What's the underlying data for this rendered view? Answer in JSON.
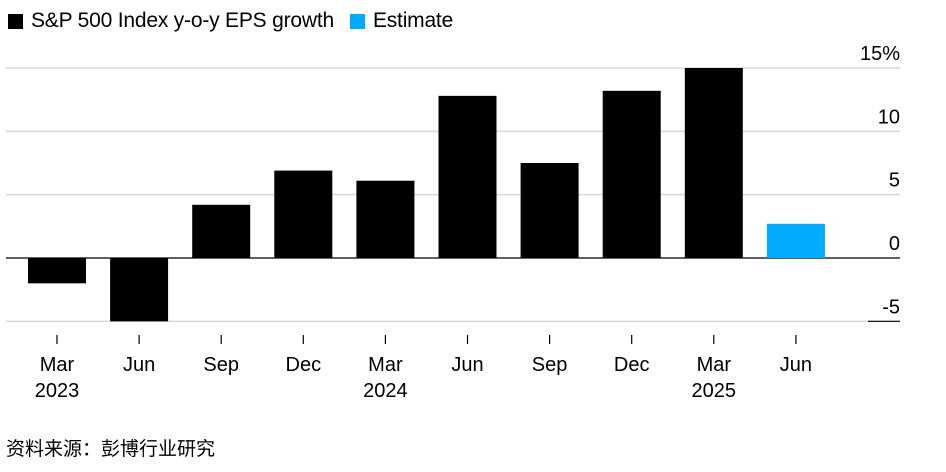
{
  "legend": [
    {
      "label": "S&P 500 Index y-o-y EPS growth",
      "color": "#000000"
    },
    {
      "label": "Estimate",
      "color": "#00aaff"
    }
  ],
  "source": "资料来源：彭博行业研究",
  "chart_data": {
    "type": "bar",
    "categories": [
      "Mar",
      "Jun",
      "Sep",
      "Dec",
      "Mar",
      "Jun",
      "Sep",
      "Dec",
      "Mar",
      "Jun"
    ],
    "year_labels": [
      "2023",
      "",
      "",
      "",
      "2024",
      "",
      "",
      "",
      "2025",
      ""
    ],
    "series": [
      {
        "name": "S&P 500 Index y-o-y EPS growth",
        "color": "#000000",
        "values": [
          -2.0,
          -5.0,
          4.2,
          6.9,
          6.1,
          12.8,
          7.5,
          13.2,
          15.0,
          null
        ]
      },
      {
        "name": "Estimate",
        "color": "#00aaff",
        "values": [
          null,
          null,
          null,
          null,
          null,
          null,
          null,
          null,
          null,
          2.7
        ]
      }
    ],
    "y_ticks": [
      {
        "value": 15,
        "label": "15%"
      },
      {
        "value": 10,
        "label": "10"
      },
      {
        "value": 5,
        "label": "5"
      },
      {
        "value": 0,
        "label": "0"
      },
      {
        "value": -5,
        "label": "-5"
      }
    ],
    "ylim": [
      -5,
      15
    ],
    "grid": true,
    "y_axis_side": "right",
    "legend_position": "top-left"
  }
}
